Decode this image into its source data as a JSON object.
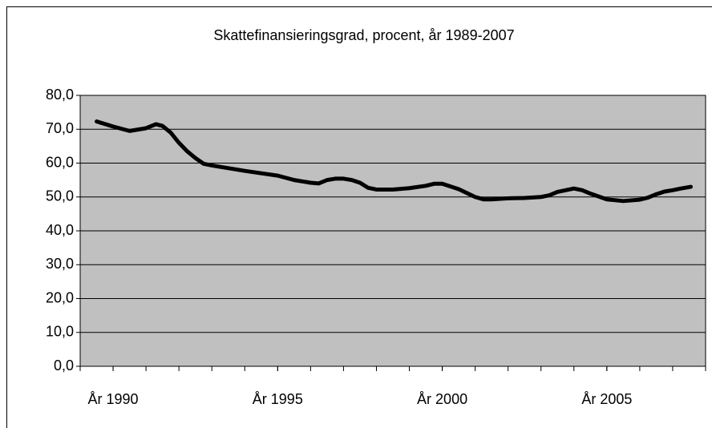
{
  "chart_data": {
    "type": "line",
    "title": "Skattefinansieringsgrad, procent, år 1989-2007",
    "x": [
      1989.5,
      1990.0,
      1990.5,
      1991.0,
      1991.3,
      1991.5,
      1991.75,
      1992.0,
      1992.25,
      1992.5,
      1992.75,
      1993.0,
      1993.5,
      1994.0,
      1994.5,
      1995.0,
      1995.5,
      1996.0,
      1996.25,
      1996.5,
      1996.75,
      1997.0,
      1997.25,
      1997.5,
      1997.75,
      1998.0,
      1998.5,
      1999.0,
      1999.5,
      1999.75,
      2000.0,
      2000.5,
      2001.0,
      2001.25,
      2001.5,
      2002.0,
      2002.5,
      2003.0,
      2003.25,
      2003.5,
      2004.0,
      2004.25,
      2004.5,
      2005.0,
      2005.5,
      2006.0,
      2006.25,
      2006.5,
      2006.75,
      2007.0,
      2007.25,
      2007.55
    ],
    "series": [
      {
        "color": "#000000",
        "values": [
          72.3,
          70.8,
          69.5,
          70.3,
          71.5,
          71.0,
          69.0,
          66.0,
          63.5,
          61.5,
          59.8,
          59.3,
          58.5,
          57.7,
          57.0,
          56.3,
          55.0,
          54.2,
          54.0,
          55.0,
          55.4,
          55.4,
          55.0,
          54.2,
          52.7,
          52.2,
          52.2,
          52.6,
          53.3,
          53.9,
          53.9,
          52.3,
          50.0,
          49.3,
          49.3,
          49.6,
          49.7,
          50.0,
          50.5,
          51.5,
          52.5,
          52.0,
          51.0,
          49.3,
          48.8,
          49.2,
          49.8,
          50.8,
          51.6,
          52.0,
          52.5,
          53.0
        ]
      }
    ],
    "xlim": [
      1989,
      2008
    ],
    "xticks": [
      {
        "value": 1990,
        "label": "År 1990"
      },
      {
        "value": 1995,
        "label": "År 1995"
      },
      {
        "value": 2000,
        "label": "År 2000"
      },
      {
        "value": 2005,
        "label": "År 2005"
      }
    ],
    "xminorticks": [
      1989,
      1990,
      1991,
      1992,
      1993,
      1994,
      1995,
      1996,
      1997,
      1998,
      1999,
      2000,
      2001,
      2002,
      2003,
      2004,
      2005,
      2006,
      2007,
      2008
    ],
    "ylim": [
      0,
      80
    ],
    "yticks": [
      {
        "value": 0,
        "label": "0,0"
      },
      {
        "value": 10,
        "label": "10,0"
      },
      {
        "value": 20,
        "label": "20,0"
      },
      {
        "value": 30,
        "label": "30,0"
      },
      {
        "value": 40,
        "label": "40,0"
      },
      {
        "value": 50,
        "label": "50,0"
      },
      {
        "value": 60,
        "label": "60,0"
      },
      {
        "value": 70,
        "label": "70,0"
      },
      {
        "value": 80,
        "label": "80,0"
      }
    ],
    "grid": true,
    "plot_background": "#c0c0c0"
  }
}
